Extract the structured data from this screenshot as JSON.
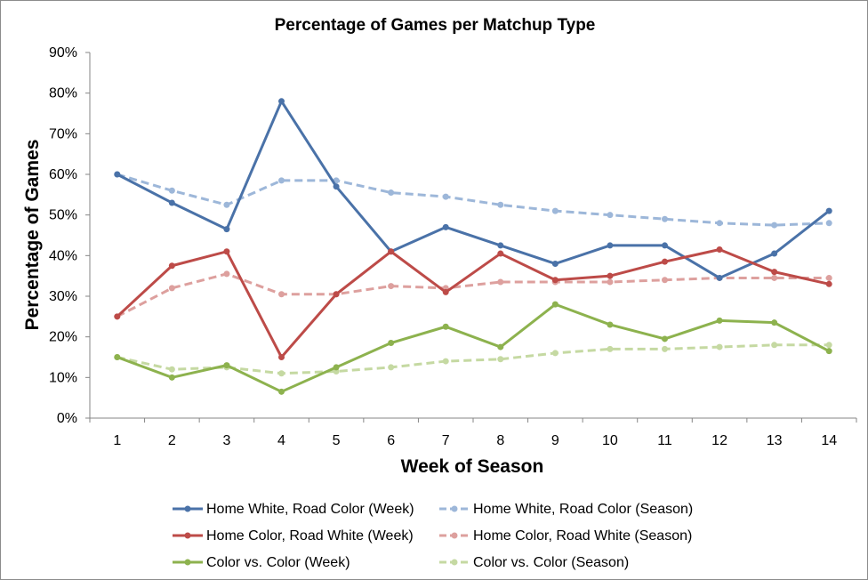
{
  "chart_data": {
    "type": "line",
    "title": "Percentage of Games per Matchup Type",
    "xlabel": "Week of Season",
    "ylabel": "Percentage of Games",
    "x": [
      1,
      2,
      3,
      4,
      5,
      6,
      7,
      8,
      9,
      10,
      11,
      12,
      13,
      14
    ],
    "ylim": [
      0,
      90
    ],
    "y_ticks": [
      "0%",
      "10%",
      "20%",
      "30%",
      "40%",
      "50%",
      "60%",
      "70%",
      "80%",
      "90%"
    ],
    "y_unit": "%",
    "grid": false,
    "legend_position": "bottom",
    "series": [
      {
        "name": "Home White, Road Color (Week)",
        "color": "#4a72a8",
        "style": "solid",
        "values": [
          60,
          53,
          46.5,
          78,
          57,
          41,
          47,
          42.5,
          38,
          42.5,
          42.5,
          34.5,
          40.5,
          51
        ]
      },
      {
        "name": "Home White, Road Color (Season)",
        "color": "#9db7d9",
        "style": "dashed",
        "values": [
          60,
          56,
          52.5,
          58.5,
          58.5,
          55.5,
          54.5,
          52.5,
          51,
          50,
          49,
          48,
          47.5,
          48
        ]
      },
      {
        "name": "Home Color, Road White (Week)",
        "color": "#bd4b48",
        "style": "solid",
        "values": [
          25,
          37.5,
          41,
          15,
          30.5,
          41,
          31,
          40.5,
          34,
          35,
          38.5,
          41.5,
          36,
          33
        ]
      },
      {
        "name": "Home Color, Road White (Season)",
        "color": "#dda09e",
        "style": "dashed",
        "values": [
          25,
          32,
          35.5,
          30.5,
          30.5,
          32.5,
          32,
          33.5,
          33.5,
          33.5,
          34,
          34.5,
          34.5,
          34.5
        ]
      },
      {
        "name": "Color vs. Color (Week)",
        "color": "#8db24e",
        "style": "solid",
        "values": [
          15,
          10,
          13,
          6.5,
          12.5,
          18.5,
          22.5,
          17.5,
          28,
          23,
          19.5,
          24,
          23.5,
          16.5
        ]
      },
      {
        "name": "Color vs. Color (Season)",
        "color": "#c5d9a2",
        "style": "dashed",
        "values": [
          15,
          12,
          12.5,
          11,
          11.5,
          12.5,
          14,
          14.5,
          16,
          17,
          17,
          17.5,
          18,
          18
        ]
      }
    ]
  }
}
